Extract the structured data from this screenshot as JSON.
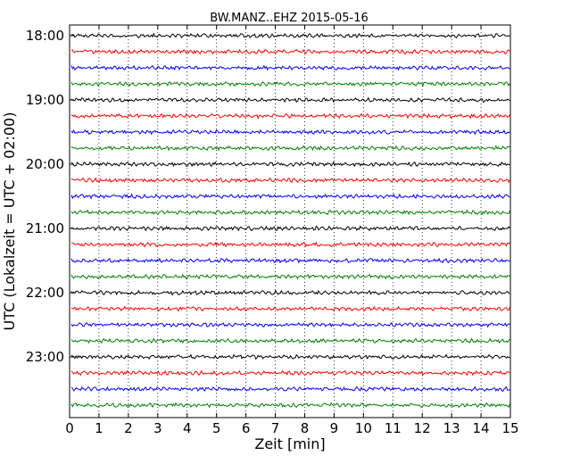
{
  "chart_data": {
    "type": "line",
    "title": "BW.MANZ..EHZ 2015-05-16",
    "xlabel": "Zeit  [min]",
    "ylabel": "UTC (Lokalzeit = UTC + 02:00)",
    "xlim": [
      0,
      15
    ],
    "x_ticks": [
      "0",
      "1",
      "2",
      "3",
      "4",
      "5",
      "6",
      "7",
      "8",
      "9",
      "10",
      "11",
      "12",
      "13",
      "14",
      "15"
    ],
    "y_ticks": [
      "18:00",
      "19:00",
      "20:00",
      "21:00",
      "22:00",
      "23:00"
    ],
    "traces_per_hour": 4,
    "trace_count": 24,
    "trace_colors": [
      "#000000",
      "#ff0000",
      "#0000ff",
      "#008000"
    ],
    "grid": "vertical-dotted"
  }
}
